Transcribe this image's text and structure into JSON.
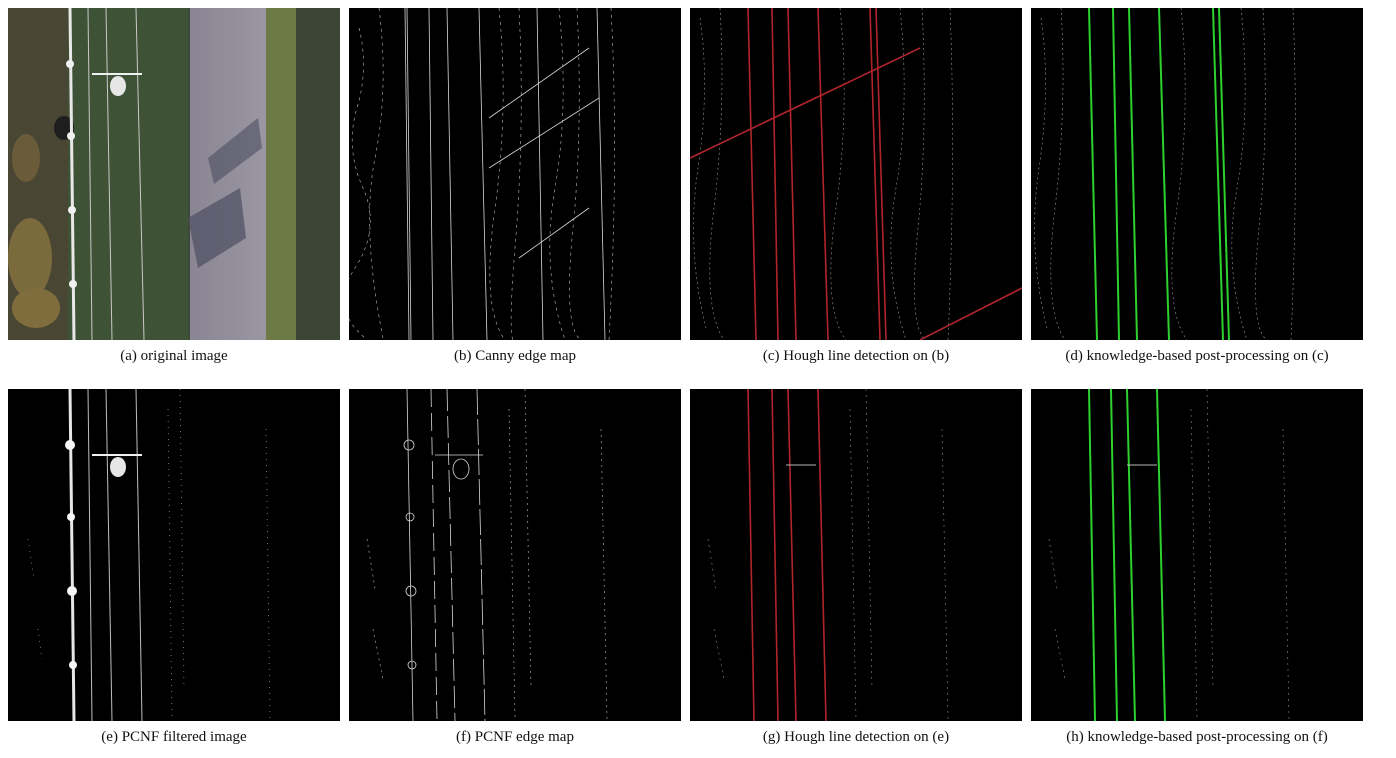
{
  "figure": {
    "panels": [
      {
        "id": "a",
        "caption": "(a) original image"
      },
      {
        "id": "b",
        "caption": "(b) Canny edge map"
      },
      {
        "id": "c",
        "caption": "(c) Hough line detection on (b)"
      },
      {
        "id": "d",
        "caption": "(d) knowledge-based post-processing on (c)"
      },
      {
        "id": "e",
        "caption": "(e) PCNF filtered image"
      },
      {
        "id": "f",
        "caption": "(f) PCNF edge map"
      },
      {
        "id": "g",
        "caption": "(g) Hough line detection on (e)"
      },
      {
        "id": "h",
        "caption": "(h) knowledge-based post-processing on (f)"
      }
    ],
    "colors": {
      "hough_lines": "#b0252b",
      "post_processed_lines": "#2ed12e",
      "edge_white": "#d8d8d8"
    }
  }
}
